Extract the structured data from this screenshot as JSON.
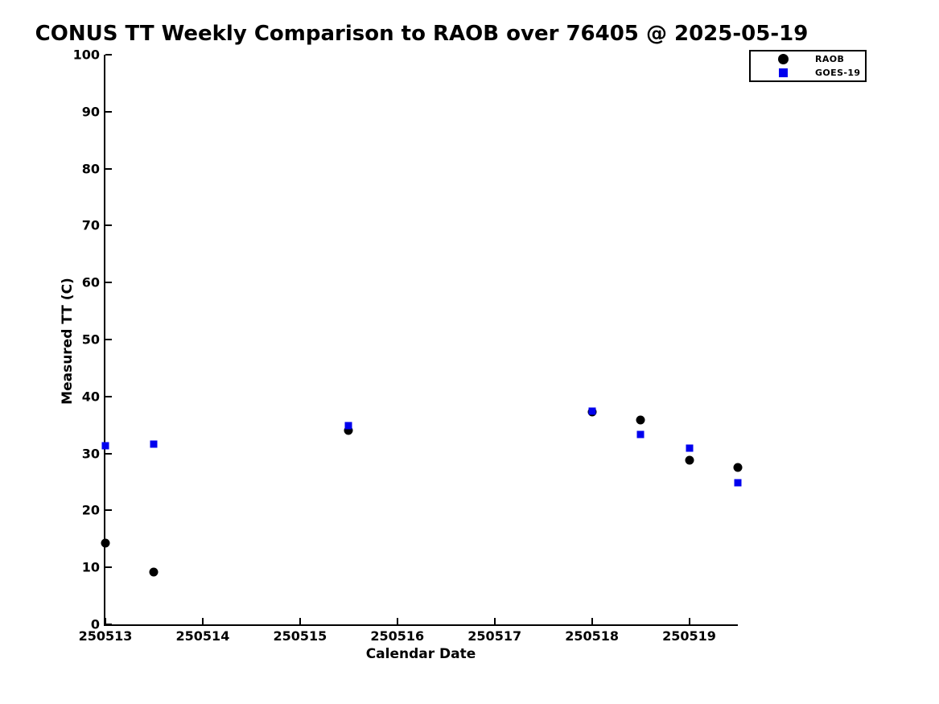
{
  "figure": {
    "title": "CONUS TT Weekly Comparison to RAOB over 76405 @ 2025-05-19"
  },
  "chart_data": {
    "type": "scatter",
    "title": "CONUS TT Weekly Comparison to RAOB over 76405 @ 2025-05-19",
    "xlabel": "Calendar Date",
    "ylabel": "Measured TT (C)",
    "xlim": [
      250513,
      250519.5
    ],
    "ylim": [
      0,
      100
    ],
    "xticks": [
      250513,
      250514,
      250515,
      250516,
      250517,
      250518,
      250519
    ],
    "yticks": [
      0,
      10,
      20,
      30,
      40,
      50,
      60,
      70,
      80,
      90,
      100
    ],
    "grid": false,
    "legend_position": "top-right",
    "series": [
      {
        "name": "RAOB",
        "marker": "circle",
        "color": "#000000",
        "points": [
          [
            250513.0,
            14.3
          ],
          [
            250513.5,
            9.2
          ],
          [
            250515.5,
            34.0
          ],
          [
            250518.0,
            37.3
          ],
          [
            250518.5,
            35.9
          ],
          [
            250519.0,
            28.8
          ],
          [
            250519.5,
            27.6
          ]
        ]
      },
      {
        "name": "GOES-19",
        "marker": "square",
        "color": "#0000EE",
        "points": [
          [
            250513.0,
            31.4
          ],
          [
            250513.5,
            31.7
          ],
          [
            250515.5,
            34.9
          ],
          [
            250518.0,
            37.4
          ],
          [
            250518.5,
            33.4
          ],
          [
            250519.0,
            31.0
          ],
          [
            250519.5,
            24.9
          ]
        ]
      }
    ]
  }
}
